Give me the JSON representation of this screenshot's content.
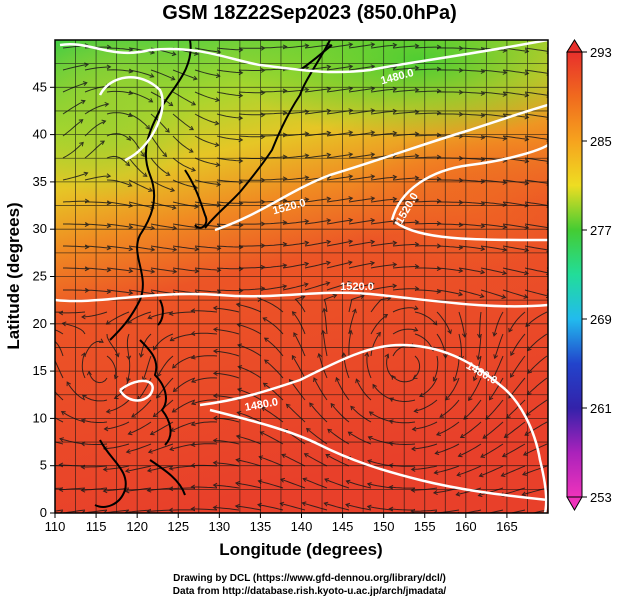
{
  "title": "GSM 18Z22Sep2023 (850.0hPa)",
  "x_axis": {
    "label": "Longitude (degrees)",
    "ticks": [
      "110",
      "115",
      "120",
      "125",
      "130",
      "135",
      "140",
      "145",
      "150",
      "155",
      "160",
      "165"
    ]
  },
  "y_axis": {
    "label": "Latitude  (degrees)",
    "ticks": [
      "0",
      "5",
      "10",
      "15",
      "20",
      "25",
      "30",
      "35",
      "40",
      "45"
    ]
  },
  "colorbar": {
    "labels": [
      "293",
      "285",
      "277",
      "269",
      "261",
      "253"
    ],
    "colors": [
      "#e8302c",
      "#f06a1e",
      "#f6a31e",
      "#eedd22",
      "#44cc33",
      "#22dd99",
      "#22bbee",
      "#2244cc",
      "#3322aa",
      "#aa22bb",
      "#ee33bb"
    ]
  },
  "contours": [
    {
      "label": "1480.0"
    },
    {
      "label": "1520.0"
    },
    {
      "label": "1520.0"
    },
    {
      "label": "1480.0"
    },
    {
      "label": "1480.0"
    },
    {
      "label": "1520.0"
    }
  ],
  "credit": {
    "line1": "Drawing by DCL (https://www.gfd-dennou.org/library/dcl/)",
    "line2": "Data from http://database.rish.kyoto-u.ac.jp/arch/jmadata/"
  }
}
